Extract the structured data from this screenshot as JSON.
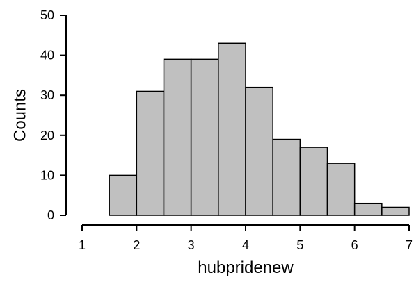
{
  "chart_data": {
    "type": "bar",
    "title": "",
    "xlabel": "hubpridenew",
    "ylabel": "Counts",
    "xlim": [
      1,
      7
    ],
    "ylim": [
      0,
      50
    ],
    "x_ticks": [
      1,
      2,
      3,
      4,
      5,
      6,
      7
    ],
    "y_ticks": [
      0,
      10,
      20,
      30,
      40,
      50
    ],
    "bins": [
      {
        "x0": 1.5,
        "x1": 2.0,
        "count": 10
      },
      {
        "x0": 2.0,
        "x1": 2.5,
        "count": 31
      },
      {
        "x0": 2.5,
        "x1": 3.0,
        "count": 39
      },
      {
        "x0": 3.0,
        "x1": 3.5,
        "count": 39
      },
      {
        "x0": 3.5,
        "x1": 4.0,
        "count": 43
      },
      {
        "x0": 4.0,
        "x1": 4.5,
        "count": 32
      },
      {
        "x0": 4.5,
        "x1": 5.0,
        "count": 19
      },
      {
        "x0": 5.0,
        "x1": 5.5,
        "count": 17
      },
      {
        "x0": 5.5,
        "x1": 6.0,
        "count": 13
      },
      {
        "x0": 6.0,
        "x1": 6.5,
        "count": 3
      },
      {
        "x0": 6.5,
        "x1": 7.0,
        "count": 2
      }
    ],
    "bar_color": "#c0c0c0",
    "edge_color": "#000000",
    "grid": false
  }
}
